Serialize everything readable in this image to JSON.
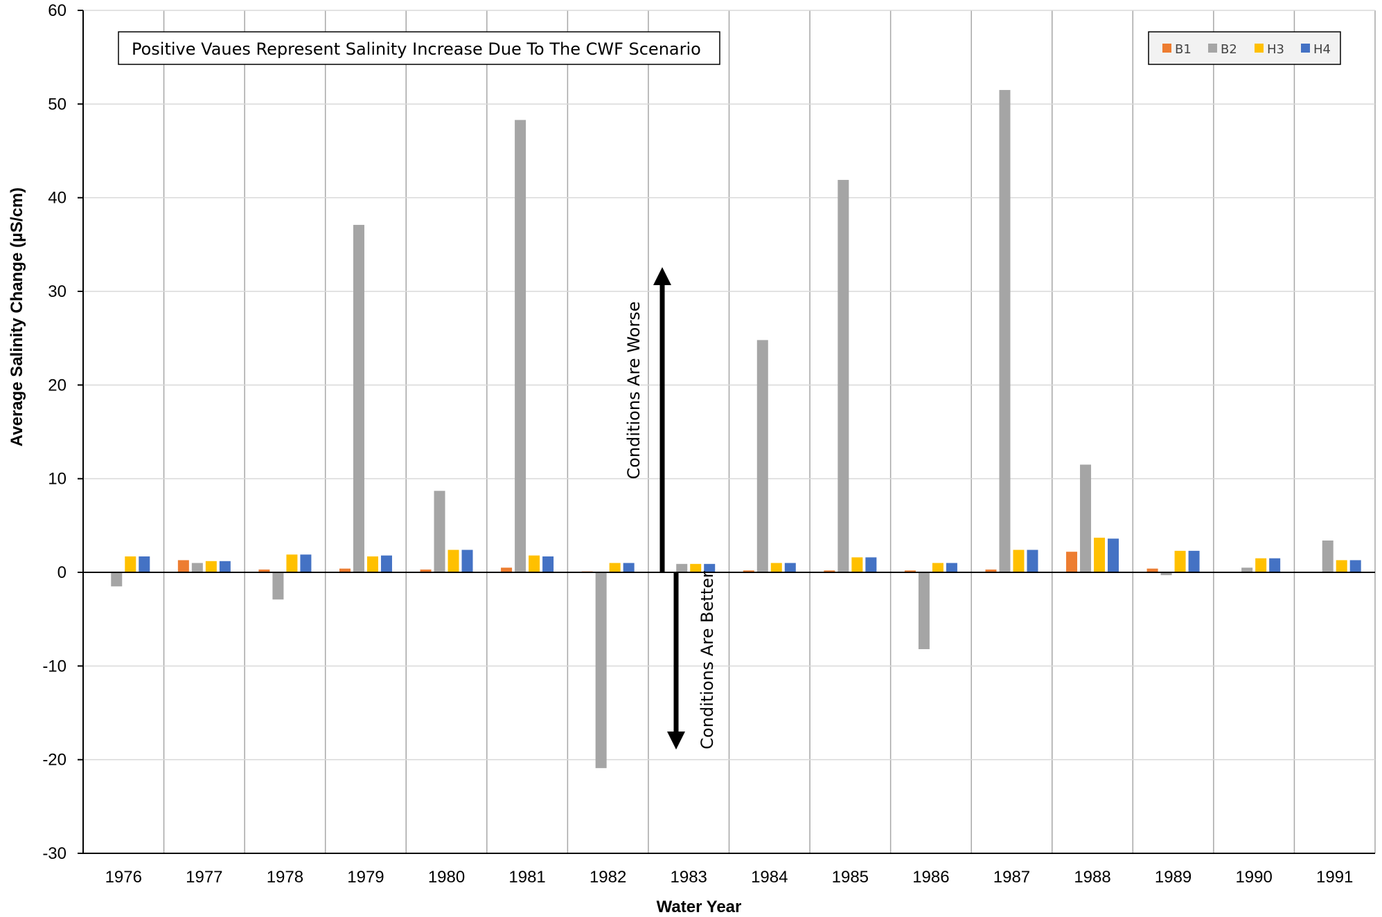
{
  "chart_data": {
    "type": "bar",
    "xlabel": "Water Year",
    "ylabel": "Average Salinity Change  (µS/cm)",
    "ylim": [
      -30,
      60
    ],
    "yticks": [
      60,
      50,
      40,
      30,
      20,
      10,
      0,
      -10,
      -20,
      -30
    ],
    "grid": "vertical and horizontal",
    "categories": [
      "1976",
      "1977",
      "1978",
      "1979",
      "1980",
      "1981",
      "1982",
      "1983",
      "1984",
      "1985",
      "1986",
      "1987",
      "1988",
      "1989",
      "1990",
      "1991"
    ],
    "series": [
      {
        "name": "B1",
        "color": "#ED7D31",
        "values": [
          0,
          1.3,
          0.3,
          0.4,
          0.3,
          0.5,
          0.1,
          0,
          0.2,
          0.2,
          0.2,
          0.3,
          2.2,
          0.4,
          0,
          0
        ]
      },
      {
        "name": "B2",
        "color": "#A5A5A5",
        "values": [
          -1.5,
          1.0,
          -2.9,
          37.1,
          8.7,
          48.3,
          -20.9,
          0.9,
          24.8,
          41.9,
          -8.2,
          51.5,
          11.5,
          -0.3,
          0.5,
          3.4
        ]
      },
      {
        "name": "H3",
        "color": "#FFC000",
        "values": [
          1.7,
          1.2,
          1.9,
          1.7,
          2.4,
          1.8,
          1.0,
          0.9,
          1.0,
          1.6,
          1.0,
          2.4,
          3.7,
          2.3,
          1.5,
          1.3
        ]
      },
      {
        "name": "H4",
        "color": "#4472C4",
        "values": [
          1.7,
          1.2,
          1.9,
          1.8,
          2.4,
          1.7,
          1.0,
          0.9,
          1.0,
          1.6,
          1.0,
          2.4,
          3.6,
          2.3,
          1.5,
          1.3
        ]
      }
    ],
    "legend": {
      "position": "top-right",
      "items": [
        "B1",
        "B2",
        "H3",
        "H4"
      ]
    },
    "annotation_box": "Positive Vaues Represent Salinity Increase Due To The CWF Scenario",
    "arrow_up_label": "Conditions Are Worse",
    "arrow_down_label": "Conditions Are Better"
  }
}
